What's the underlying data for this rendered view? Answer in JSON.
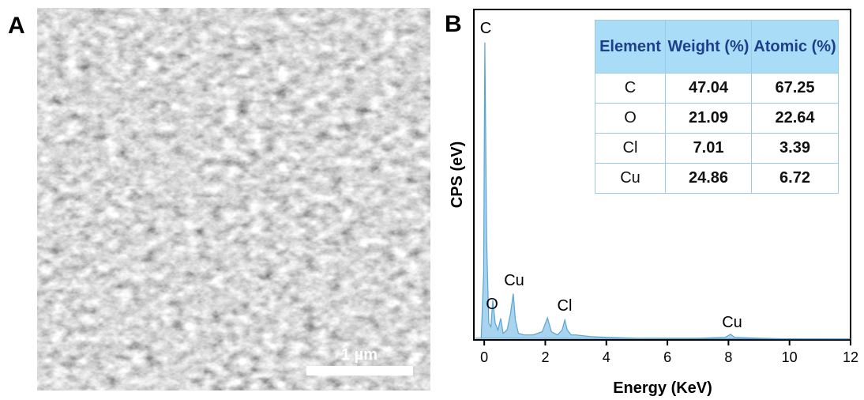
{
  "panel_a": {
    "label": "A",
    "scale_bar": "1 µm"
  },
  "chart_data": {
    "type": "area",
    "panel_label": "B",
    "x_label": "Energy (KeV)",
    "y_label": "CPS (eV)",
    "x": [
      -0.3,
      -0.1,
      -0.02,
      0.02,
      0.08,
      0.15,
      0.22,
      0.28,
      0.36,
      0.45,
      0.54,
      0.62,
      0.75,
      0.86,
      0.95,
      1.02,
      1.12,
      1.3,
      1.6,
      1.9,
      2.07,
      2.2,
      2.4,
      2.55,
      2.64,
      2.72,
      2.85,
      3.0,
      3.5,
      4.0,
      5.0,
      6.0,
      7.0,
      7.9,
      8.07,
      8.2,
      9.0,
      10.0,
      12.0
    ],
    "values": [
      0.5,
      0.5,
      20,
      90,
      30,
      5,
      4,
      12,
      5,
      3,
      6.5,
      2,
      3,
      8,
      14,
      6,
      2,
      1.5,
      1.5,
      2.5,
      6.7,
      2.5,
      1.5,
      3,
      6,
      3,
      1.5,
      1.5,
      1,
      0.8,
      0.5,
      0.5,
      0.5,
      0.8,
      1.7,
      0.8,
      0.5,
      0.3,
      0.3
    ],
    "color": "#a9d4ee",
    "line_color": "#5aa3d3",
    "xlim": [
      -0.34,
      12
    ],
    "ylim": [
      0,
      100
    ],
    "xticks": [
      0,
      2,
      4,
      6,
      8,
      10,
      12
    ],
    "annotations": [
      "C",
      "O",
      "Cu",
      "Cl",
      "Cu"
    ],
    "table": {
      "header": [
        "Element",
        "Weight (%)",
        "Atomic (%)"
      ],
      "rows": [
        [
          "C",
          47.04,
          67.25
        ],
        [
          "O",
          21.09,
          22.64
        ],
        [
          "Cl",
          7.01,
          3.39
        ],
        [
          "Cu",
          24.86,
          6.72
        ]
      ]
    }
  }
}
